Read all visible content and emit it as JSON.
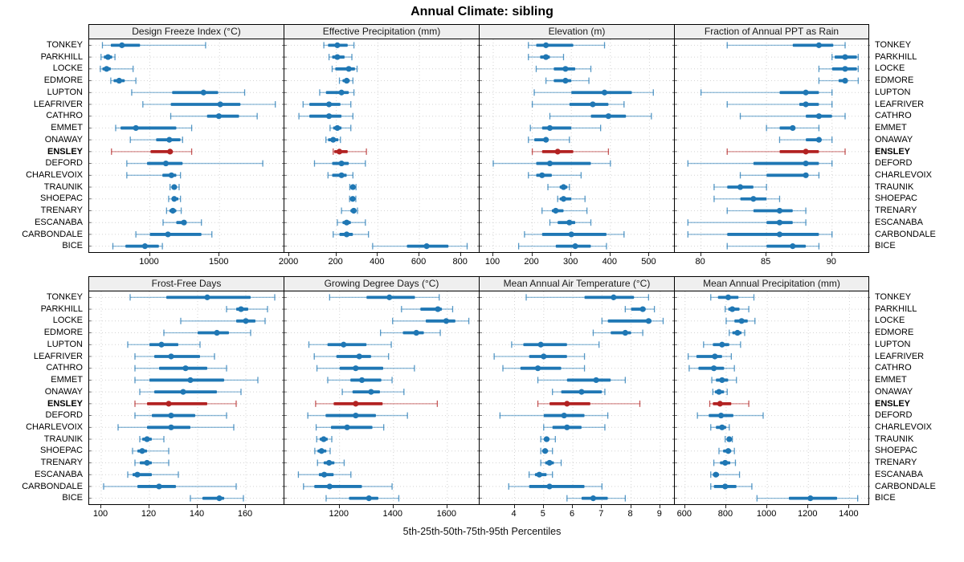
{
  "title": "Annual Climate: sibling",
  "caption": "5th-25th-50th-75th-95th Percentiles",
  "highlight_station": "ENSLEY",
  "colors": {
    "normal": "#1f77b4",
    "highlight": "#b22222",
    "grid": "#d4d4d4",
    "header_bg": "#efefef",
    "border": "#000000"
  },
  "stations": [
    "TONKEY",
    "PARKHILL",
    "LOCKE",
    "EDMORE",
    "LUPTON",
    "LEAFRIVER",
    "CATHRO",
    "EMMET",
    "ONAWAY",
    "ENSLEY",
    "DEFORD",
    "CHARLEVOIX",
    "TRAUNIK",
    "SHOEPAC",
    "TRENARY",
    "ESCANABA",
    "CARBONDALE",
    "BICE"
  ],
  "chart_data": {
    "type": "dotplot-trellis",
    "layout": {
      "rows": 2,
      "cols": 4
    },
    "grid": "dotted",
    "legend": "none",
    "percentile_labels": [
      "5th",
      "25th",
      "50th",
      "75th",
      "95th"
    ],
    "note": "values arrays are [p5,p25,p50,p75,p95] aligned with stations order",
    "panels": [
      {
        "title": "Design Freeze Index (°C)",
        "row": 0,
        "col": 0,
        "domain": [
          565,
          1965
        ],
        "ticks": [
          1000,
          1500,
          2000
        ],
        "values": [
          [
            660,
            720,
            800,
            930,
            1400
          ],
          [
            650,
            670,
            700,
            730,
            750
          ],
          [
            645,
            660,
            690,
            720,
            880
          ],
          [
            720,
            740,
            780,
            820,
            900
          ],
          [
            870,
            1160,
            1385,
            1490,
            1680
          ],
          [
            950,
            1150,
            1505,
            1650,
            1900
          ],
          [
            1150,
            1410,
            1495,
            1640,
            1770
          ],
          [
            755,
            790,
            900,
            1190,
            1300
          ],
          [
            860,
            1045,
            1140,
            1220,
            1235
          ],
          [
            725,
            1005,
            1145,
            1165,
            1300
          ],
          [
            835,
            980,
            1115,
            1235,
            1810
          ],
          [
            835,
            1090,
            1155,
            1190,
            1220
          ],
          [
            1145,
            1155,
            1175,
            1195,
            1210
          ],
          [
            1135,
            1160,
            1175,
            1205,
            1220
          ],
          [
            1120,
            1140,
            1165,
            1190,
            1225
          ],
          [
            1095,
            1190,
            1245,
            1260,
            1370
          ],
          [
            900,
            1000,
            1130,
            1370,
            1445
          ],
          [
            735,
            825,
            965,
            1065,
            1090
          ]
        ]
      },
      {
        "title": "Effective Precipitation (mm)",
        "row": 0,
        "col": 1,
        "domain": [
          -50,
          890
        ],
        "ticks": [
          200,
          400,
          600,
          800
        ],
        "values": [
          [
            140,
            160,
            205,
            255,
            285
          ],
          [
            165,
            180,
            205,
            240,
            275
          ],
          [
            180,
            195,
            260,
            290,
            300
          ],
          [
            215,
            230,
            250,
            265,
            280
          ],
          [
            120,
            150,
            225,
            260,
            285
          ],
          [
            40,
            70,
            165,
            220,
            270
          ],
          [
            20,
            70,
            165,
            225,
            280
          ],
          [
            170,
            185,
            205,
            225,
            270
          ],
          [
            150,
            160,
            185,
            210,
            220
          ],
          [
            185,
            190,
            215,
            255,
            345
          ],
          [
            95,
            180,
            225,
            260,
            340
          ],
          [
            160,
            180,
            225,
            250,
            280
          ],
          [
            265,
            270,
            280,
            290,
            295
          ],
          [
            264,
            270,
            279,
            289,
            294
          ],
          [
            225,
            268,
            284,
            294,
            302
          ],
          [
            205,
            230,
            250,
            270,
            340
          ],
          [
            185,
            215,
            250,
            280,
            355
          ],
          [
            375,
            540,
            635,
            740,
            830
          ]
        ]
      },
      {
        "title": "Elevation (m)",
        "row": 0,
        "col": 2,
        "domain": [
          65,
          565
        ],
        "ticks": [
          100,
          200,
          300,
          400,
          500
        ],
        "values": [
          [
            190,
            210,
            235,
            305,
            385
          ],
          [
            190,
            220,
            235,
            245,
            280
          ],
          [
            210,
            255,
            285,
            310,
            350
          ],
          [
            235,
            255,
            285,
            300,
            345
          ],
          [
            205,
            300,
            385,
            455,
            510
          ],
          [
            200,
            295,
            355,
            395,
            435
          ],
          [
            245,
            350,
            395,
            440,
            505
          ],
          [
            195,
            225,
            245,
            300,
            375
          ],
          [
            190,
            205,
            235,
            240,
            295
          ],
          [
            200,
            225,
            265,
            305,
            395
          ],
          [
            100,
            210,
            245,
            350,
            400
          ],
          [
            190,
            210,
            225,
            250,
            325
          ],
          [
            240,
            270,
            280,
            290,
            295
          ],
          [
            265,
            270,
            280,
            300,
            335
          ],
          [
            225,
            250,
            260,
            280,
            340
          ],
          [
            245,
            265,
            295,
            310,
            350
          ],
          [
            180,
            225,
            300,
            390,
            435
          ],
          [
            165,
            260,
            310,
            350,
            390
          ]
        ]
      },
      {
        "title": "Fraction of Annual PPT as Rain",
        "row": 0,
        "col": 3,
        "domain": [
          78,
          92.9
        ],
        "ticks": [
          80,
          85,
          90
        ],
        "values": [
          [
            82,
            87,
            89,
            90.1,
            91
          ],
          [
            90,
            90.2,
            91,
            91.9,
            92
          ],
          [
            89,
            90,
            91,
            91.9,
            92
          ],
          [
            89,
            90.5,
            91,
            91.2,
            92
          ],
          [
            80,
            86,
            88,
            89,
            90
          ],
          [
            82,
            87.5,
            88,
            89,
            90
          ],
          [
            83,
            88,
            89,
            90,
            91
          ],
          [
            85,
            86,
            87,
            87.2,
            89
          ],
          [
            86,
            88,
            89,
            89.2,
            90
          ],
          [
            82,
            86,
            88,
            89,
            91
          ],
          [
            79,
            84,
            88,
            89,
            90
          ],
          [
            83,
            85,
            88,
            88.2,
            89
          ],
          [
            81,
            82,
            83,
            84,
            85
          ],
          [
            81,
            83,
            84,
            85,
            86
          ],
          [
            82,
            84,
            86,
            87,
            88
          ],
          [
            79,
            85,
            86,
            87,
            88
          ],
          [
            79,
            82,
            86,
            89,
            90
          ],
          [
            82,
            85,
            87,
            88,
            89
          ]
        ]
      },
      {
        "title": "Frost-Free Days",
        "row": 1,
        "col": 0,
        "domain": [
          95,
          176
        ],
        "ticks": [
          100,
          120,
          140,
          160
        ],
        "values": [
          [
            112,
            127,
            144,
            162,
            172
          ],
          [
            152,
            156,
            158,
            161,
            169
          ],
          [
            133,
            156,
            160,
            164,
            168
          ],
          [
            126,
            140,
            148,
            153,
            162
          ],
          [
            111,
            120,
            125,
            132,
            141
          ],
          [
            114,
            122,
            129,
            141,
            147
          ],
          [
            114,
            124,
            135,
            144,
            152
          ],
          [
            114,
            120,
            137,
            151,
            165
          ],
          [
            116,
            122,
            134,
            148,
            158
          ],
          [
            114,
            119,
            128,
            144,
            156
          ],
          [
            114,
            121,
            129,
            139,
            152
          ],
          [
            107,
            119,
            129,
            137,
            155
          ],
          [
            116,
            117,
            119,
            121,
            126
          ],
          [
            113,
            115,
            117,
            119,
            128
          ],
          [
            114,
            116,
            119,
            121,
            128
          ],
          [
            111,
            113,
            115,
            121,
            132
          ],
          [
            101,
            115,
            124,
            131,
            156
          ],
          [
            137,
            142,
            149,
            151,
            159
          ]
        ]
      },
      {
        "title": "Growing Degree Days (°C)",
        "row": 1,
        "col": 1,
        "domain": [
          995,
          1720
        ],
        "ticks": [
          1200,
          1400,
          1600
        ],
        "values": [
          [
            1163,
            1300,
            1385,
            1480,
            1570
          ],
          [
            1430,
            1500,
            1565,
            1580,
            1620
          ],
          [
            1397,
            1520,
            1596,
            1630,
            1680
          ],
          [
            1352,
            1435,
            1485,
            1513,
            1574
          ],
          [
            1086,
            1155,
            1215,
            1300,
            1392
          ],
          [
            1106,
            1188,
            1273,
            1317,
            1382
          ],
          [
            1116,
            1200,
            1260,
            1362,
            1478
          ],
          [
            1156,
            1240,
            1283,
            1355,
            1395
          ],
          [
            1210,
            1248,
            1317,
            1350,
            1439
          ],
          [
            1111,
            1178,
            1260,
            1360,
            1563
          ],
          [
            1082,
            1148,
            1260,
            1335,
            1452
          ],
          [
            1113,
            1168,
            1228,
            1322,
            1364
          ],
          [
            1115,
            1126,
            1141,
            1156,
            1171
          ],
          [
            1108,
            1118,
            1133,
            1151,
            1165
          ],
          [
            1118,
            1141,
            1161,
            1181,
            1217
          ],
          [
            1047,
            1123,
            1143,
            1178,
            1242
          ],
          [
            1066,
            1106,
            1163,
            1283,
            1395
          ],
          [
            1150,
            1235,
            1309,
            1344,
            1420
          ]
        ]
      },
      {
        "title": "Mean Annual Air Temperature (°C)",
        "row": 1,
        "col": 2,
        "domain": [
          2.8,
          9.5
        ],
        "ticks": [
          4,
          5,
          6,
          7,
          8,
          9
        ],
        "values": [
          [
            4.4,
            6.4,
            7.4,
            8.1,
            8.6
          ],
          [
            7.8,
            8.0,
            8.4,
            8.5,
            8.8
          ],
          [
            7.0,
            7.2,
            8.6,
            8.7,
            9.1
          ],
          [
            6.7,
            7.3,
            7.8,
            8.0,
            8.4
          ],
          [
            3.9,
            4.3,
            4.9,
            5.8,
            6.9
          ],
          [
            3.3,
            4.5,
            5.0,
            5.8,
            6.4
          ],
          [
            3.6,
            4.2,
            4.8,
            5.6,
            6.4
          ],
          [
            4.8,
            5.8,
            6.8,
            7.3,
            7.8
          ],
          [
            5.3,
            5.6,
            6.3,
            7.0,
            7.1
          ],
          [
            4.8,
            5.2,
            5.8,
            6.6,
            8.3
          ],
          [
            3.5,
            5.0,
            5.7,
            6.4,
            7.2
          ],
          [
            5.0,
            5.3,
            5.8,
            6.3,
            7.1
          ],
          [
            4.9,
            5.0,
            5.1,
            5.2,
            5.4
          ],
          [
            4.9,
            4.95,
            5.05,
            5.15,
            5.3
          ],
          [
            4.9,
            5.05,
            5.2,
            5.35,
            5.6
          ],
          [
            4.5,
            4.7,
            4.85,
            5.1,
            5.3
          ],
          [
            3.8,
            4.5,
            5.2,
            6.4,
            7.0
          ],
          [
            5.8,
            6.3,
            6.7,
            7.2,
            7.8
          ]
        ]
      },
      {
        "title": "Mean Annual Precipitation (mm)",
        "row": 1,
        "col": 3,
        "domain": [
          550,
          1500
        ],
        "ticks": [
          600,
          800,
          1000,
          1200,
          1400
        ],
        "values": [
          [
            725,
            760,
            810,
            860,
            935
          ],
          [
            795,
            810,
            830,
            865,
            910
          ],
          [
            800,
            840,
            875,
            905,
            940
          ],
          [
            815,
            830,
            855,
            875,
            890
          ],
          [
            690,
            735,
            780,
            815,
            870
          ],
          [
            615,
            655,
            745,
            780,
            825
          ],
          [
            620,
            665,
            740,
            790,
            840
          ],
          [
            730,
            750,
            780,
            810,
            850
          ],
          [
            735,
            745,
            765,
            790,
            805
          ],
          [
            720,
            735,
            770,
            825,
            910
          ],
          [
            660,
            715,
            775,
            835,
            980
          ],
          [
            725,
            750,
            780,
            800,
            815
          ],
          [
            795,
            805,
            815,
            825,
            830
          ],
          [
            765,
            785,
            810,
            825,
            840
          ],
          [
            740,
            770,
            795,
            820,
            845
          ],
          [
            725,
            735,
            750,
            765,
            865
          ],
          [
            725,
            740,
            795,
            850,
            925
          ],
          [
            950,
            1105,
            1210,
            1340,
            1440
          ]
        ]
      }
    ]
  }
}
